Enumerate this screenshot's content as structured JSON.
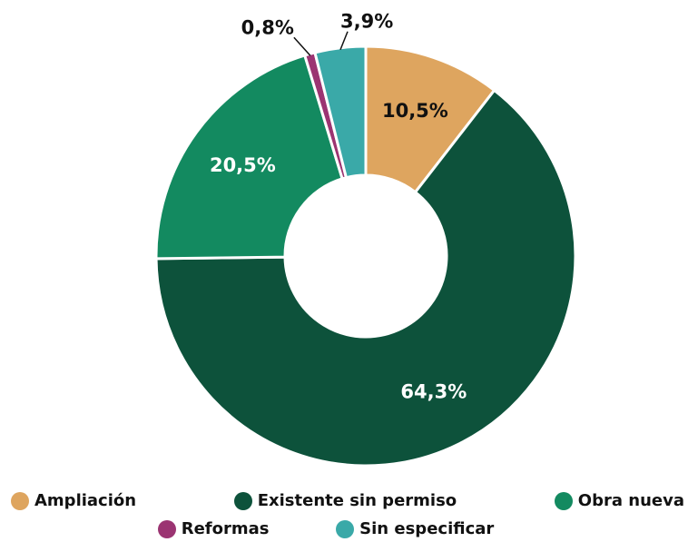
{
  "chart_data": {
    "type": "donut",
    "categories": [
      "Ampliación",
      "Existente sin permiso",
      "Obra nueva",
      "Reformas",
      "Sin especificar"
    ],
    "values": [
      10.5,
      64.3,
      20.5,
      0.8,
      3.9
    ],
    "value_labels": [
      "10,5%",
      "64,3%",
      "20,5%",
      "0,8%",
      "3,9%"
    ],
    "colors": [
      "#dea55f",
      "#0d523b",
      "#138a60",
      "#9b3472",
      "#3aa9a8"
    ],
    "legend": "bottom"
  }
}
